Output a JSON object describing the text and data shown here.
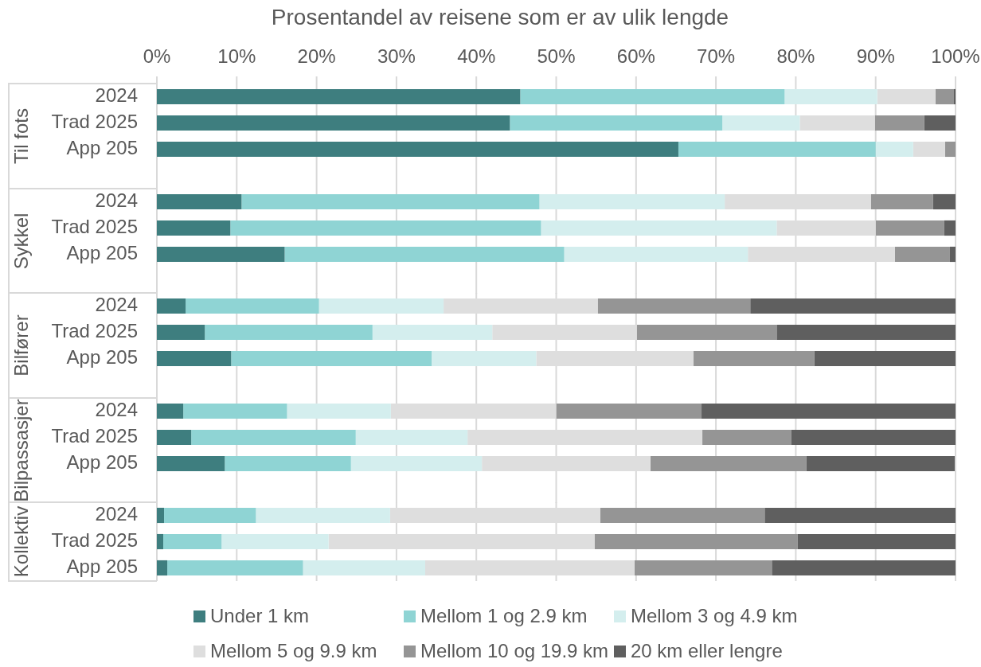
{
  "chart_data": [
    {
      "type": "bar",
      "orientation": "horizontal",
      "stacked": true,
      "title": "Prosentandel av reisene som er av ulik lengde",
      "ylabel": "Til fots",
      "categories": [
        "2024",
        "Trad 2025",
        "App 205"
      ],
      "xlim": [
        0,
        100
      ],
      "xticks": [
        {
          "value": 0,
          "label": "0%"
        },
        {
          "value": 10,
          "label": "10%"
        },
        {
          "value": 20,
          "label": "20%"
        },
        {
          "value": 30,
          "label": "30%"
        },
        {
          "value": 40,
          "label": "40%"
        },
        {
          "value": 50,
          "label": "50%"
        },
        {
          "value": 60,
          "label": "60%"
        },
        {
          "value": 70,
          "label": "70%"
        },
        {
          "value": 80,
          "label": "80%"
        },
        {
          "value": 90,
          "label": "90%"
        },
        {
          "value": 100,
          "label": "100%"
        }
      ],
      "grid": "x",
      "series": [
        {
          "color": "#3e7e7f",
          "values": [
            45.5,
            44.2,
            65.3
          ]
        },
        {
          "color": "#8fd4d4",
          "values": [
            33.1,
            26.6,
            24.7
          ]
        },
        {
          "color": "#d4eeee",
          "values": [
            11.6,
            9.7,
            4.7
          ]
        },
        {
          "color": "#dedede",
          "values": [
            7.3,
            9.4,
            4.0
          ]
        },
        {
          "color": "#959595",
          "values": [
            2.3,
            6.2,
            1.3
          ]
        },
        {
          "color": "#5f5f5f",
          "values": [
            0.2,
            3.9,
            null
          ]
        }
      ]
    },
    {
      "type": "bar",
      "orientation": "horizontal",
      "stacked": true,
      "ylabel": "Sykkel",
      "categories": [
        "2024",
        "Trad 2025",
        "App 205"
      ],
      "xlim": [
        0,
        100
      ],
      "xticks": [
        {
          "value": 0,
          "label": null
        },
        {
          "value": 10,
          "label": null
        },
        {
          "value": 20,
          "label": null
        },
        {
          "value": 30,
          "label": null
        },
        {
          "value": 40,
          "label": null
        },
        {
          "value": 50,
          "label": null
        },
        {
          "value": 60,
          "label": null
        },
        {
          "value": 70,
          "label": null
        },
        {
          "value": 80,
          "label": null
        },
        {
          "value": 90,
          "label": null
        },
        {
          "value": 100,
          "label": null
        }
      ],
      "grid": "x",
      "tick_labels": "y",
      "series": [
        {
          "color": "#3e7e7f",
          "values": [
            10.6,
            9.2,
            16.0
          ]
        },
        {
          "color": "#8fd4d4",
          "values": [
            37.3,
            38.9,
            35.0
          ]
        },
        {
          "color": "#d4eeee",
          "values": [
            23.2,
            29.5,
            23.0
          ]
        },
        {
          "color": "#dedede",
          "values": [
            18.3,
            12.4,
            18.4
          ]
        },
        {
          "color": "#959595",
          "values": [
            7.8,
            8.6,
            6.9
          ]
        },
        {
          "color": "#5f5f5f",
          "values": [
            2.8,
            1.4,
            0.7
          ]
        }
      ]
    },
    {
      "type": "bar",
      "orientation": "horizontal",
      "stacked": true,
      "ylabel": "Bilfører",
      "categories": [
        "2024",
        "Trad 2025",
        "App 205"
      ],
      "xlim": [
        0,
        100
      ],
      "xticks": [
        {
          "value": 0,
          "label": null
        },
        {
          "value": 10,
          "label": null
        },
        {
          "value": 20,
          "label": null
        },
        {
          "value": 30,
          "label": null
        },
        {
          "value": 40,
          "label": null
        },
        {
          "value": 50,
          "label": null
        },
        {
          "value": 60,
          "label": null
        },
        {
          "value": 70,
          "label": null
        },
        {
          "value": 80,
          "label": null
        },
        {
          "value": 90,
          "label": null
        },
        {
          "value": 100,
          "label": null
        }
      ],
      "grid": "x",
      "tick_labels": "y",
      "series": [
        {
          "color": "#3e7e7f",
          "values": [
            3.6,
            6.0,
            9.3
          ]
        },
        {
          "color": "#8fd4d4",
          "values": [
            16.7,
            21.0,
            25.1
          ]
        },
        {
          "color": "#d4eeee",
          "values": [
            15.6,
            15.0,
            13.1
          ]
        },
        {
          "color": "#dedede",
          "values": [
            19.3,
            18.1,
            19.7
          ]
        },
        {
          "color": "#959595",
          "values": [
            19.1,
            17.5,
            15.1
          ]
        },
        {
          "color": "#5f5f5f",
          "values": [
            25.7,
            22.4,
            17.7
          ]
        }
      ]
    },
    {
      "type": "bar",
      "orientation": "horizontal",
      "stacked": true,
      "ylabel": "Bilpassasjer",
      "categories": [
        "2024",
        "Trad 2025",
        "App 205"
      ],
      "xlim": [
        0,
        100
      ],
      "xticks": [
        {
          "value": 0,
          "label": null
        },
        {
          "value": 10,
          "label": null
        },
        {
          "value": 20,
          "label": null
        },
        {
          "value": 30,
          "label": null
        },
        {
          "value": 40,
          "label": null
        },
        {
          "value": 50,
          "label": null
        },
        {
          "value": 60,
          "label": null
        },
        {
          "value": 70,
          "label": null
        },
        {
          "value": 80,
          "label": null
        },
        {
          "value": 90,
          "label": null
        },
        {
          "value": 100,
          "label": null
        }
      ],
      "grid": "x",
      "tick_labels": "y",
      "series": [
        {
          "color": "#3e7e7f",
          "values": [
            3.3,
            4.3,
            8.5
          ]
        },
        {
          "color": "#8fd4d4",
          "values": [
            13.0,
            20.6,
            15.8
          ]
        },
        {
          "color": "#d4eeee",
          "values": [
            13.0,
            14.0,
            16.4
          ]
        },
        {
          "color": "#dedede",
          "values": [
            20.7,
            29.4,
            21.1
          ]
        },
        {
          "color": "#959595",
          "values": [
            18.2,
            11.1,
            19.5
          ]
        },
        {
          "color": "#5f5f5f",
          "values": [
            31.8,
            20.6,
            18.6
          ]
        }
      ]
    },
    {
      "type": "bar",
      "orientation": "horizontal",
      "stacked": true,
      "ylabel": "Kollektiv",
      "categories": [
        "2024",
        "Trad 2025",
        "App 205"
      ],
      "xlim": [
        0,
        100
      ],
      "xticks": [
        {
          "value": 0,
          "label": null
        },
        {
          "value": 10,
          "label": null
        },
        {
          "value": 20,
          "label": null
        },
        {
          "value": 30,
          "label": null
        },
        {
          "value": 40,
          "label": null
        },
        {
          "value": 50,
          "label": null
        },
        {
          "value": 60,
          "label": null
        },
        {
          "value": 70,
          "label": null
        },
        {
          "value": 80,
          "label": null
        },
        {
          "value": 90,
          "label": null
        },
        {
          "value": 100,
          "label": null
        }
      ],
      "grid": "x",
      "tick_labels": "y",
      "legend": "bottom",
      "series": [
        {
          "name": "Under 1 km",
          "color": "#3e7e7f",
          "values": [
            0.9,
            0.8,
            1.3
          ]
        },
        {
          "name": "Mellom 1 og 2.9 km",
          "color": "#8fd4d4",
          "values": [
            11.5,
            7.3,
            17.0
          ]
        },
        {
          "name": "Mellom 3 og 4.9 km",
          "color": "#d4eeee",
          "values": [
            16.8,
            13.4,
            15.3
          ]
        },
        {
          "name": "Mellom 5 og 9.9 km",
          "color": "#dedede",
          "values": [
            26.3,
            33.3,
            26.2
          ]
        },
        {
          "name": "Mellom 10 og 19.9 km",
          "color": "#959595",
          "values": [
            20.6,
            25.4,
            17.2
          ]
        },
        {
          "name": "20 km eller lengre",
          "color": "#5f5f5f",
          "values": [
            23.9,
            19.8,
            23.0
          ]
        }
      ]
    }
  ]
}
